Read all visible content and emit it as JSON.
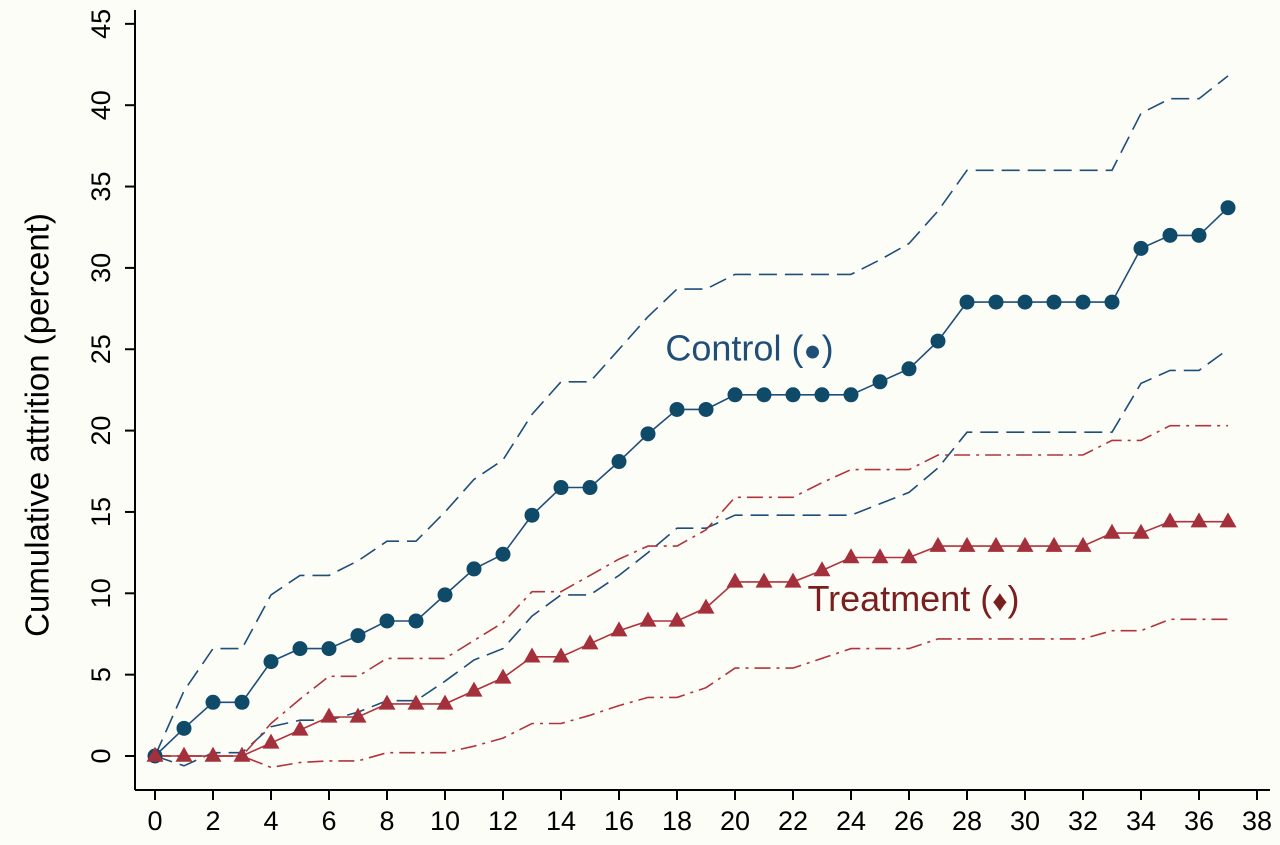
{
  "chart_data": {
    "type": "line",
    "title": "",
    "xlabel": "",
    "ylabel": "Cumulative attrition (percent)",
    "xlim": [
      0,
      38
    ],
    "ylim": [
      0,
      45
    ],
    "x_ticks": [
      0,
      2,
      4,
      6,
      8,
      10,
      12,
      14,
      16,
      18,
      20,
      22,
      24,
      26,
      28,
      30,
      32,
      34,
      36,
      38
    ],
    "y_ticks": [
      0,
      5,
      10,
      15,
      20,
      25,
      30,
      35,
      40,
      45
    ],
    "grid": false,
    "colors": {
      "control": "#1f4e79",
      "treatment": "#b0343c",
      "control_label": "#1f4e79",
      "treatment_label": "#7a1f1f"
    },
    "x": [
      0,
      1,
      2,
      3,
      4,
      5,
      6,
      7,
      8,
      9,
      10,
      11,
      12,
      13,
      14,
      15,
      16,
      17,
      18,
      19,
      20,
      21,
      22,
      23,
      24,
      25,
      26,
      27,
      28,
      29,
      30,
      31,
      32,
      33,
      34,
      35,
      36,
      37
    ],
    "series": [
      {
        "key": "control",
        "marker": "circle",
        "values": [
          0,
          1.7,
          3.3,
          3.3,
          5.8,
          6.6,
          6.6,
          7.4,
          8.3,
          8.3,
          9.9,
          11.5,
          12.4,
          14.8,
          16.5,
          16.5,
          18.1,
          19.8,
          21.3,
          21.3,
          22.2,
          22.2,
          22.2,
          22.2,
          22.2,
          23.0,
          23.8,
          25.5,
          27.9,
          27.9,
          27.9,
          27.9,
          27.9,
          27.9,
          31.2,
          32.0,
          32.0,
          33.7
        ]
      },
      {
        "key": "control_upper",
        "style": "dashed",
        "values": [
          0,
          4.0,
          6.6,
          6.6,
          9.9,
          11.1,
          11.1,
          12.0,
          13.2,
          13.2,
          15.0,
          17.0,
          18.2,
          21.0,
          23.0,
          23.0,
          25.0,
          27.0,
          28.7,
          28.7,
          29.6,
          29.6,
          29.6,
          29.6,
          29.6,
          30.5,
          31.5,
          33.5,
          36.0,
          36.0,
          36.0,
          36.0,
          36.0,
          36.0,
          39.5,
          40.4,
          40.4,
          41.8
        ]
      },
      {
        "key": "control_lower",
        "style": "dashed",
        "values": [
          0,
          -0.6,
          0.2,
          0.2,
          1.8,
          2.2,
          2.2,
          2.7,
          3.4,
          3.4,
          4.6,
          5.9,
          6.6,
          8.6,
          9.9,
          9.9,
          11.1,
          12.5,
          14.0,
          14.0,
          14.8,
          14.8,
          14.8,
          14.8,
          14.8,
          15.5,
          16.2,
          17.7,
          19.9,
          19.9,
          19.9,
          19.9,
          19.9,
          19.9,
          22.9,
          23.7,
          23.7,
          25.0
        ]
      },
      {
        "key": "treatment",
        "marker": "triangle",
        "values": [
          0,
          0,
          0,
          0,
          0.8,
          1.6,
          2.4,
          2.4,
          3.2,
          3.2,
          3.2,
          4.0,
          4.8,
          6.1,
          6.1,
          6.9,
          7.7,
          8.3,
          8.3,
          9.1,
          10.7,
          10.7,
          10.7,
          11.4,
          12.2,
          12.2,
          12.2,
          12.9,
          12.9,
          12.9,
          12.9,
          12.9,
          12.9,
          13.7,
          13.7,
          14.4,
          14.4,
          14.4
        ]
      },
      {
        "key": "treatment_upper",
        "style": "dashdot",
        "values": [
          0,
          0,
          0,
          0,
          2.0,
          3.5,
          4.9,
          4.9,
          6.0,
          6.0,
          6.0,
          7.1,
          8.2,
          10.1,
          10.1,
          11.1,
          12.1,
          12.9,
          12.9,
          13.9,
          15.9,
          15.9,
          15.9,
          16.8,
          17.6,
          17.6,
          17.6,
          18.5,
          18.5,
          18.5,
          18.5,
          18.5,
          18.5,
          19.4,
          19.4,
          20.3,
          20.3,
          20.3
        ]
      },
      {
        "key": "treatment_lower",
        "style": "dashdot",
        "values": [
          0,
          0,
          0,
          0,
          -0.7,
          -0.4,
          -0.3,
          -0.3,
          0.2,
          0.2,
          0.2,
          0.6,
          1.1,
          2.0,
          2.0,
          2.5,
          3.1,
          3.6,
          3.6,
          4.2,
          5.4,
          5.4,
          5.4,
          6.0,
          6.6,
          6.6,
          6.6,
          7.2,
          7.2,
          7.2,
          7.2,
          7.2,
          7.2,
          7.7,
          7.7,
          8.4,
          8.4,
          8.4
        ]
      }
    ],
    "annotations": [
      {
        "key": "control",
        "text": "Control (",
        "symbol": "●",
        "close": ")",
        "at": [
          17.6,
          24.3
        ]
      },
      {
        "key": "treatment",
        "text": "Treatment (",
        "symbol": "♦",
        "close": ")",
        "at": [
          22.5,
          8.9
        ]
      }
    ]
  }
}
